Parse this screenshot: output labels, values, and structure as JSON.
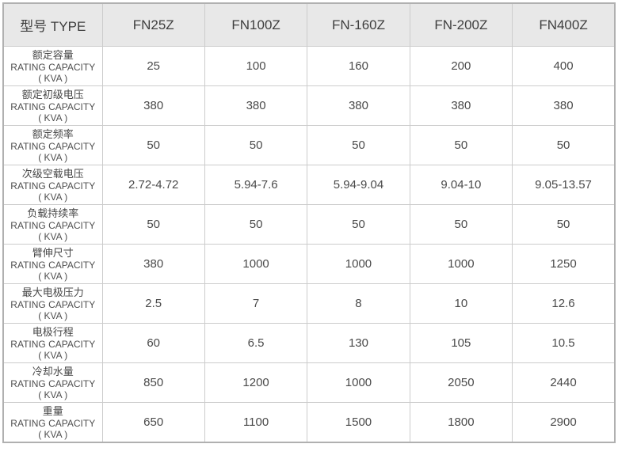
{
  "chart_data": {
    "type": "table",
    "title": "",
    "columns": [
      "型号 TYPE",
      "FN25Z",
      "FN100Z",
      "FN-160Z",
      "FN-200Z",
      "FN400Z"
    ],
    "row_label_sub": "RATING CAPACITY",
    "row_label_unit": "( KVA )",
    "rows": [
      {
        "label": "额定容量",
        "values": [
          "25",
          "100",
          "160",
          "200",
          "400"
        ]
      },
      {
        "label": "额定初级电压",
        "values": [
          "380",
          "380",
          "380",
          "380",
          "380"
        ]
      },
      {
        "label": "额定频率",
        "values": [
          "50",
          "50",
          "50",
          "50",
          "50"
        ]
      },
      {
        "label": "次级空载电压",
        "values": [
          "2.72-4.72",
          "5.94-7.6",
          "5.94-9.04",
          "9.04-10",
          "9.05-13.57"
        ]
      },
      {
        "label": "负载持续率",
        "values": [
          "50",
          "50",
          "50",
          "50",
          "50"
        ]
      },
      {
        "label": "臂伸尺寸",
        "values": [
          "380",
          "1000",
          "1000",
          "1000",
          "1250"
        ]
      },
      {
        "label": "最大电极压力",
        "values": [
          "2.5",
          "7",
          "8",
          "10",
          "12.6"
        ]
      },
      {
        "label": "电极行程",
        "values": [
          "60",
          "6.5",
          "130",
          "105",
          "10.5"
        ]
      },
      {
        "label": "冷却水量",
        "values": [
          "850",
          "1200",
          "1000",
          "2050",
          "2440"
        ]
      },
      {
        "label": "重量",
        "values": [
          "650",
          "1100",
          "1500",
          "1800",
          "2900"
        ]
      }
    ]
  },
  "colors": {
    "header_bg": "#e8e8e8",
    "border_inner": "#cccccc",
    "border_outer": "#b0b0b0",
    "text": "#4a4a4a"
  }
}
